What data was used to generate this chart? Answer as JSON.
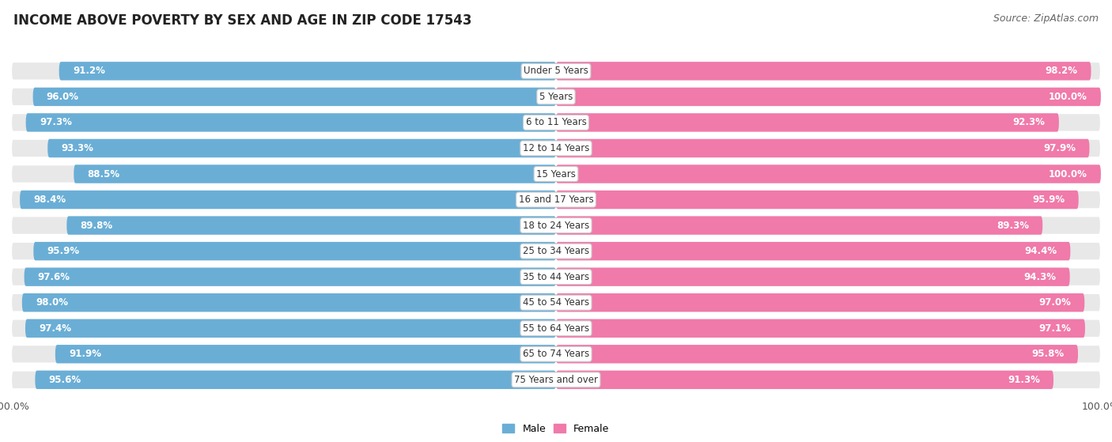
{
  "title": "INCOME ABOVE POVERTY BY SEX AND AGE IN ZIP CODE 17543",
  "source": "Source: ZipAtlas.com",
  "categories": [
    "Under 5 Years",
    "5 Years",
    "6 to 11 Years",
    "12 to 14 Years",
    "15 Years",
    "16 and 17 Years",
    "18 to 24 Years",
    "25 to 34 Years",
    "35 to 44 Years",
    "45 to 54 Years",
    "55 to 64 Years",
    "65 to 74 Years",
    "75 Years and over"
  ],
  "male": [
    91.2,
    96.0,
    97.3,
    93.3,
    88.5,
    98.4,
    89.8,
    95.9,
    97.6,
    98.0,
    97.4,
    91.9,
    95.6
  ],
  "female": [
    98.2,
    100.0,
    92.3,
    97.9,
    100.0,
    95.9,
    89.3,
    94.4,
    94.3,
    97.0,
    97.1,
    95.8,
    91.3
  ],
  "male_color": "#6aaed6",
  "female_color": "#f07aaa",
  "male_light_color": "#b8d6ea",
  "female_light_color": "#f9c0d5",
  "row_bg_color": "#e8e8e8",
  "background_color": "#ffffff",
  "title_fontsize": 12,
  "label_fontsize": 8.5,
  "tick_fontsize": 9,
  "source_fontsize": 9,
  "cat_fontsize": 8.5
}
